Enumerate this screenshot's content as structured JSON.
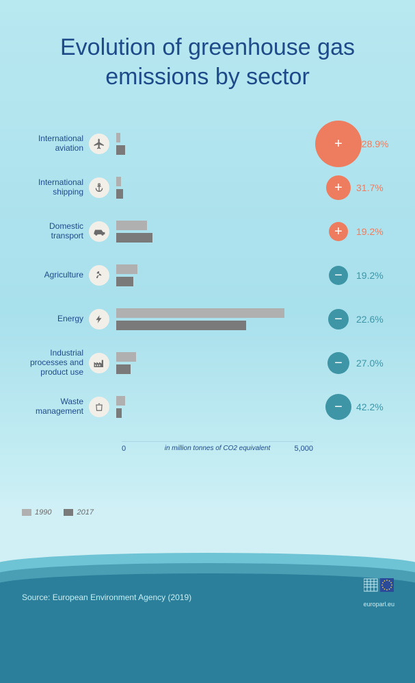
{
  "title": "Evolution of greenhouse gas emissions by sector",
  "colors": {
    "title": "#1e4a8a",
    "bar_1990": "#b0b0b0",
    "bar_2017": "#7a7a7a",
    "increase": "#ee7c5e",
    "decrease": "#3d95a6",
    "bg_top": "#b8e8f0",
    "wave1": "#6ec4d4",
    "wave2": "#4a9fb5",
    "wave3": "#2b7f9a"
  },
  "axis": {
    "min": 0,
    "max": 5000,
    "tick_left": "0",
    "tick_right": "5,000",
    "caption": "in million tonnes of CO2 equivalent"
  },
  "legend": {
    "y1990": "1990",
    "y2017": "2017"
  },
  "source": "Source: European Environment Agency (2019)",
  "logo_text": "europarl.eu",
  "sectors": [
    {
      "label": "International aviation",
      "icon": "plane",
      "v1990": 100,
      "v2017": 230,
      "delta": 128.9,
      "dir": "up",
      "badge_r": 34
    },
    {
      "label": "International shipping",
      "icon": "anchor",
      "v1990": 130,
      "v2017": 170,
      "delta": 31.7,
      "dir": "up",
      "badge_r": 18
    },
    {
      "label": "Domestic transport",
      "icon": "car",
      "v1990": 800,
      "v2017": 950,
      "delta": 19.2,
      "dir": "up",
      "badge_r": 14
    },
    {
      "label": "Agriculture",
      "icon": "leaves",
      "v1990": 550,
      "v2017": 440,
      "delta": 19.2,
      "dir": "down",
      "badge_r": 14
    },
    {
      "label": "Energy",
      "icon": "bolt",
      "v1990": 4400,
      "v2017": 3400,
      "delta": 22.6,
      "dir": "down",
      "badge_r": 15
    },
    {
      "label": "Industrial processes and product use",
      "icon": "factory",
      "v1990": 520,
      "v2017": 380,
      "delta": 27.0,
      "dir": "down",
      "badge_r": 16
    },
    {
      "label": "Waste management",
      "icon": "trash",
      "v1990": 240,
      "v2017": 140,
      "delta": 42.2,
      "dir": "down",
      "badge_r": 19
    }
  ]
}
